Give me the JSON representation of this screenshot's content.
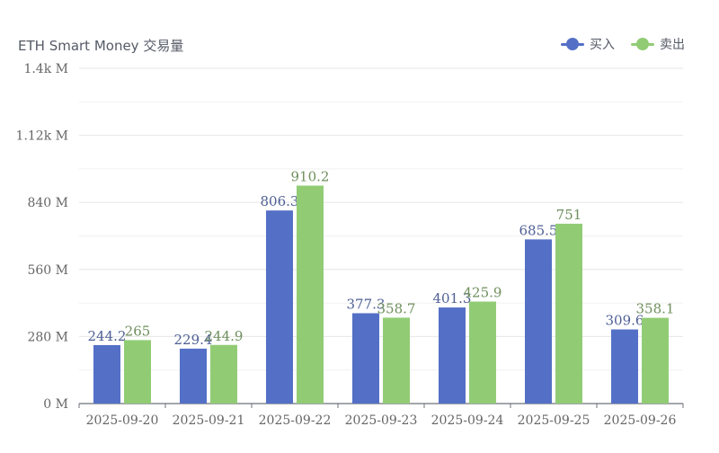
{
  "chart_data": {
    "type": "bar",
    "title": "ETH Smart Money 交易量",
    "xlabel": "",
    "ylabel": "",
    "categories": [
      "2025-09-20",
      "2025-09-21",
      "2025-09-22",
      "2025-09-23",
      "2025-09-24",
      "2025-09-25",
      "2025-09-26"
    ],
    "series": [
      {
        "name": "买入",
        "color": "#5470c6",
        "values": [
          244.2,
          229.4,
          806.3,
          377.3,
          401.3,
          685.5,
          309.6
        ]
      },
      {
        "name": "卖出",
        "color": "#91cc75",
        "values": [
          265,
          244.9,
          910.2,
          358.7,
          425.9,
          751,
          358.1
        ]
      }
    ],
    "ylim": [
      0,
      1400
    ],
    "y_ticks": [
      0,
      280,
      560,
      840,
      1120,
      1400
    ],
    "y_tick_labels": [
      "0 M",
      "280 M",
      "560 M",
      "840 M",
      "1.12k M",
      "1.4k M"
    ],
    "grid": true,
    "legend_position": "top-right"
  }
}
